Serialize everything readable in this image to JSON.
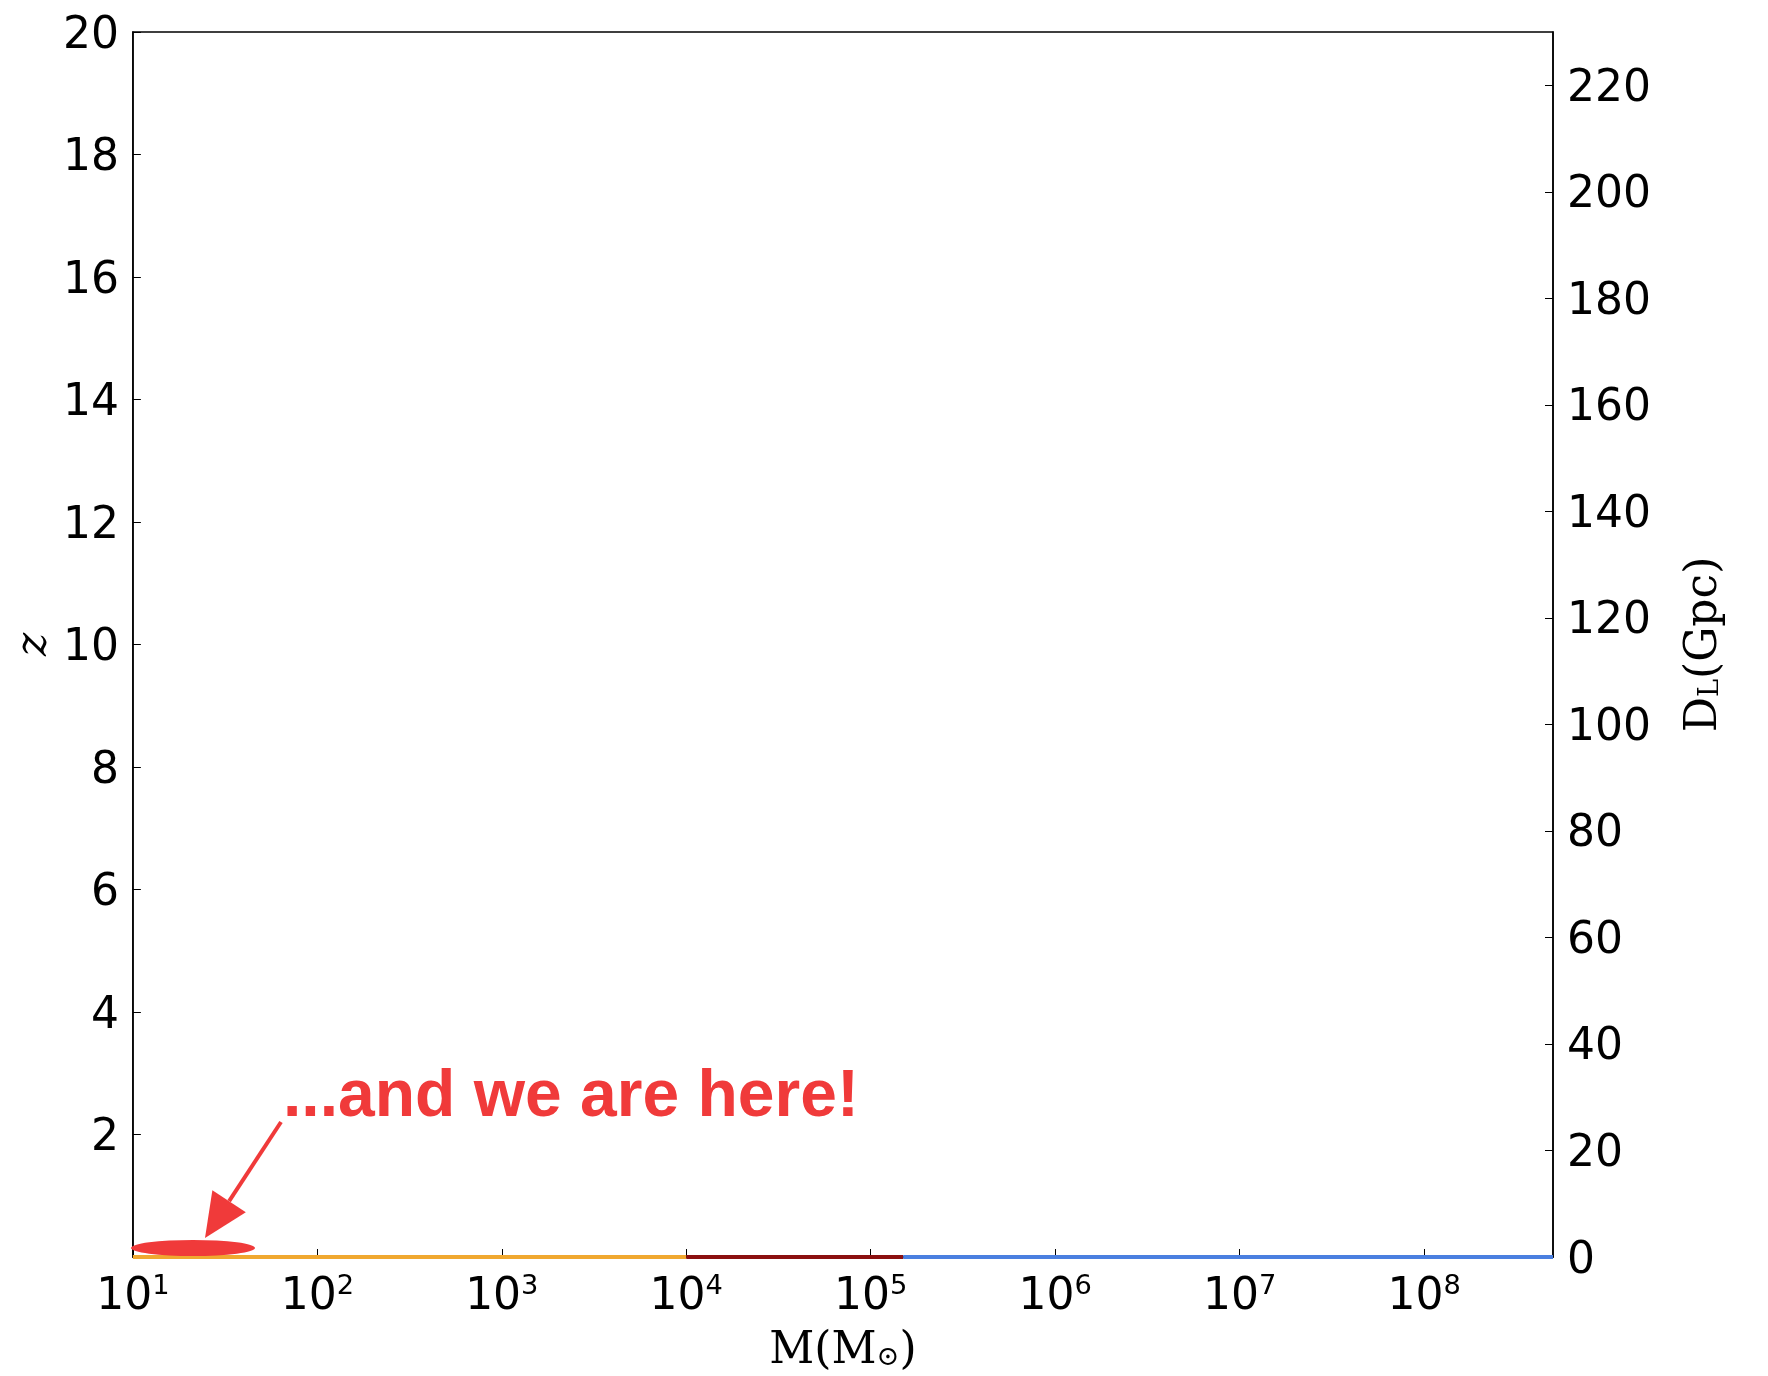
{
  "chart_data": {
    "type": "line",
    "xlabel": "M(M$_{⊙}$)",
    "ylabel": "z",
    "y2label": "D$_{L}$(Gpc)",
    "log": "x",
    "xlim": [
      10,
      500000000
    ],
    "xticks": [
      {
        "value": 10,
        "label": "10$^{1}$"
      },
      {
        "value": 100,
        "label": "10$^{2}$"
      },
      {
        "value": 1000,
        "label": "10$^{3}$"
      },
      {
        "value": 10000,
        "label": "10$^{4}$"
      },
      {
        "value": 100000,
        "label": "10$^{5}$"
      },
      {
        "value": 1000000,
        "label": "10$^{6}$"
      },
      {
        "value": 10000000,
        "label": "10$^{7}$"
      },
      {
        "value": 100000000,
        "label": "10$^{8}$"
      }
    ],
    "ylim": [
      0,
      20
    ],
    "yticks": [
      2,
      4,
      6,
      8,
      10,
      12,
      14,
      16,
      18,
      20
    ],
    "y2lim": [
      0,
      230
    ],
    "y2ticks": [
      0,
      20,
      40,
      60,
      80,
      100,
      120,
      140,
      160,
      180,
      200,
      220
    ],
    "grid": false,
    "series": [
      {
        "color": "#f0a830",
        "x": [
          10,
          10000
        ],
        "values": [
          0,
          0
        ]
      },
      {
        "color": "#8b1010",
        "x": [
          10000,
          150000
        ],
        "values": [
          0,
          0
        ]
      },
      {
        "color": "#4a7fe0",
        "x": [
          150000,
          500000000
        ],
        "values": [
          0,
          0
        ]
      }
    ],
    "annotations": [
      "...and we are here!"
    ]
  }
}
